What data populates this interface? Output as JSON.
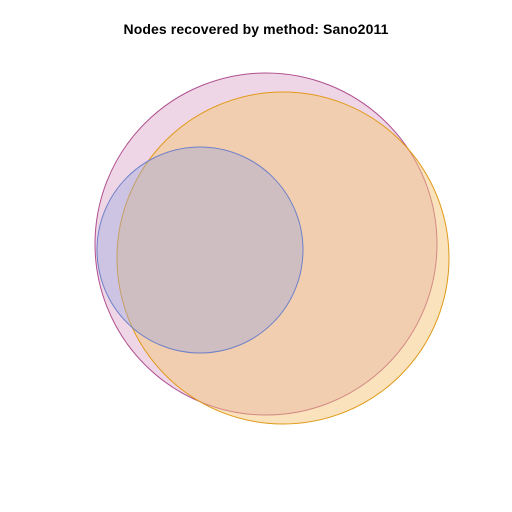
{
  "title": "Nodes recovered by method: Sano2011",
  "venn": {
    "sets": [
      {
        "id": "pink",
        "fill": "#d9a3c8",
        "stroke": "#b04f8f",
        "opacity": 0.45
      },
      {
        "id": "orange",
        "fill": "#f5c67a",
        "stroke": "#e09a1a",
        "opacity": 0.5
      },
      {
        "id": "blue",
        "fill": "#9aa8dc",
        "stroke": "#6f80c8",
        "opacity": 0.4
      }
    ]
  }
}
